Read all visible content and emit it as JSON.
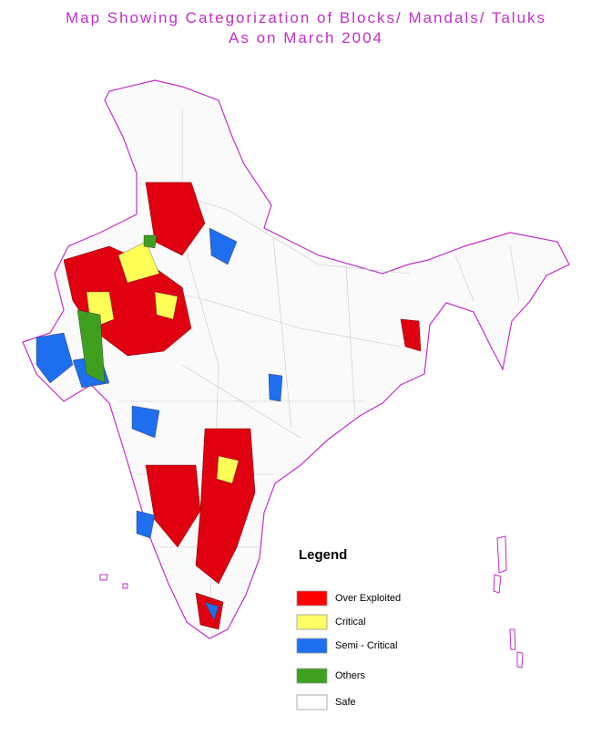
{
  "title": [
    "Map Showing Categorization of Blocks/ Mandals/ Taluks",
    "As on March 2004"
  ],
  "legend": {
    "title": "Legend",
    "items": [
      {
        "label": "Over Exploited",
        "color": "#ff0000"
      },
      {
        "label": "Critical",
        "color": "#ffff66"
      },
      {
        "label": "Semi - Critical",
        "color": "#1e6ef0"
      },
      {
        "label": "Others",
        "color": "#3fa020"
      },
      {
        "label": "Safe",
        "color": "#ffffff"
      }
    ]
  }
}
